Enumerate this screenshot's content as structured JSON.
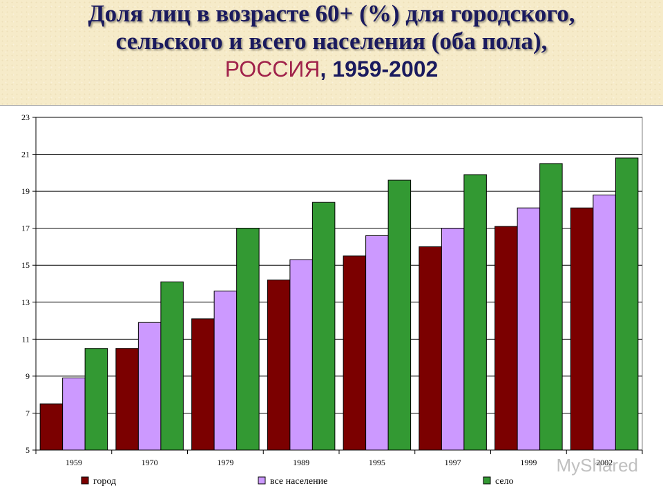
{
  "title": {
    "line1": "Доля лиц в возрасте 60+ (%) для городского,",
    "line2": "сельского и всего населения (оба пола),",
    "country": "РОССИЯ",
    "sep": ", ",
    "years": "1959-2002"
  },
  "watermark": "MyShared",
  "colors": {
    "city": "#7b0000",
    "total": "#cc99ff",
    "village": "#339933",
    "country_text": "#a0224a",
    "title_text": "#1a1a5e"
  },
  "chart_data": {
    "type": "bar",
    "categories": [
      "1959",
      "1970",
      "1979",
      "1989",
      "1995",
      "1997",
      "1999",
      "2002"
    ],
    "series": [
      {
        "name": "город",
        "values": [
          7.5,
          10.5,
          12.1,
          14.2,
          15.5,
          16.0,
          17.1,
          18.1
        ]
      },
      {
        "name": "все население",
        "values": [
          8.9,
          11.9,
          13.6,
          15.3,
          16.6,
          17.0,
          18.1,
          18.8
        ]
      },
      {
        "name": "село",
        "values": [
          10.5,
          14.1,
          17.0,
          18.4,
          19.6,
          19.9,
          20.5,
          20.8
        ]
      }
    ],
    "ylim": [
      5,
      23
    ],
    "yticks": [
      "5",
      "7",
      "9",
      "11",
      "13",
      "15",
      "17",
      "19",
      "21",
      "23"
    ],
    "grid": true,
    "legend_position": "bottom"
  }
}
